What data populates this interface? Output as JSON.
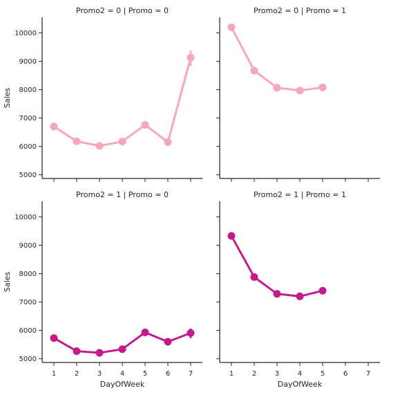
{
  "chart_data": {
    "type": "line",
    "figure": {
      "background": "#ffffff",
      "grid": false,
      "legend": "none"
    },
    "x": [
      1,
      2,
      3,
      4,
      5,
      6,
      7
    ],
    "xlabel": "DayOfWeek",
    "ylabel": "Sales",
    "ylim": [
      4870,
      10550
    ],
    "yticks": [
      5000,
      6000,
      7000,
      8000,
      9000,
      10000
    ],
    "facets": [
      {
        "title": "Promo2 = 0 | Promo = 0",
        "color": "#f7a8b8",
        "values": [
          6700,
          6180,
          6020,
          6170,
          6760,
          6150,
          9130
        ],
        "error_bars": [
          null,
          null,
          null,
          null,
          null,
          null,
          [
            8830,
            9380
          ]
        ]
      },
      {
        "title": "Promo2 = 0 | Promo = 1",
        "color": "#f7a8b8",
        "values": [
          10200,
          8670,
          8070,
          7970,
          8080,
          null,
          null
        ],
        "error_bars": [
          null,
          null,
          null,
          null,
          null,
          null,
          null
        ]
      },
      {
        "title": "Promo2 = 1 | Promo = 0",
        "color": "#c51b8a",
        "values": [
          5730,
          5270,
          5210,
          5340,
          5930,
          5600,
          5910
        ],
        "error_bars": [
          null,
          null,
          null,
          null,
          null,
          null,
          [
            5730,
            6070
          ]
        ]
      },
      {
        "title": "Promo2 = 1 | Promo = 1",
        "color": "#c51b8a",
        "values": [
          9330,
          7880,
          7290,
          7200,
          7400,
          null,
          null
        ],
        "error_bars": [
          null,
          null,
          null,
          null,
          null,
          null,
          null
        ]
      }
    ]
  }
}
